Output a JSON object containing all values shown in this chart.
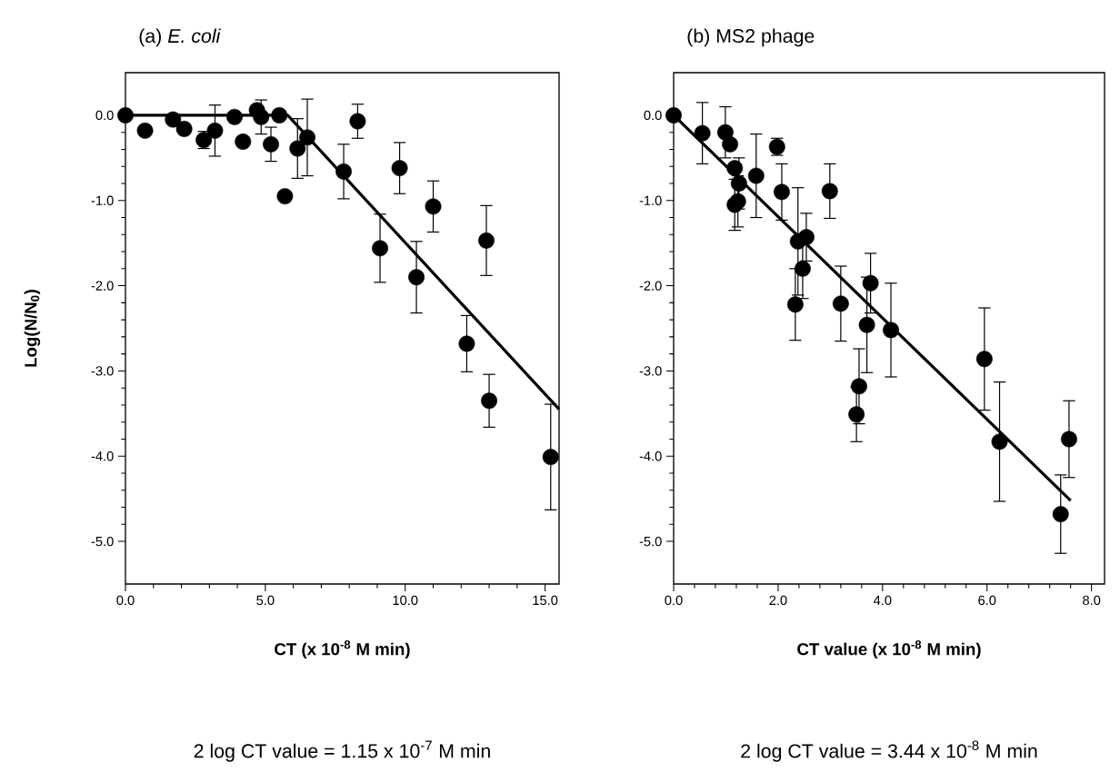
{
  "chart_data": [
    {
      "type": "scatter",
      "title": "(a) *E. coli*",
      "xlabel": "CT (x 10$^{-8}$ M min)",
      "ylabel": "Log(N/N$_{0}$)",
      "annotations": [
        "2 log CT value = 1.15 x 10$^{-7}$ M min"
      ],
      "xlim": [
        0,
        15.5
      ],
      "ylim": [
        -5.5,
        0.5
      ],
      "marker": "circle",
      "xticks": [
        {
          "value": 0,
          "label": "0.0"
        },
        {
          "value": 5,
          "label": "5.0"
        },
        {
          "value": 10,
          "label": "10.0"
        },
        {
          "value": 15,
          "label": "15.0"
        }
      ],
      "yticks": [
        {
          "value": 0,
          "label": "0.0"
        },
        {
          "value": -1,
          "label": "-1.0"
        },
        {
          "value": -2,
          "label": "-2.0"
        },
        {
          "value": -3,
          "label": "-3.0"
        },
        {
          "value": -4,
          "label": "-4.0"
        },
        {
          "value": -5,
          "label": "-5.0"
        }
      ],
      "series": [
        {
          "color": "#000000",
          "x": [
            0,
            0.7,
            1.7,
            2.1,
            2.8,
            3.2,
            3.9,
            4.2,
            4.7,
            4.85,
            5.2,
            5.5,
            5.7,
            6.15,
            6.5,
            7.8,
            8.3,
            9.1,
            9.8,
            10.4,
            11.0,
            12.2,
            12.9,
            13.0,
            15.2
          ],
          "values": [
            0,
            -0.18,
            -0.05,
            -0.16,
            -0.29,
            -0.18,
            -0.02,
            -0.31,
            0.06,
            -0.02,
            -0.34,
            0.0,
            -0.95,
            -0.39,
            -0.26,
            -0.66,
            -0.07,
            -1.56,
            -0.62,
            -1.9,
            -1.07,
            -2.68,
            -1.47,
            -3.35,
            -4.01
          ],
          "errors": [
            null,
            null,
            null,
            null,
            0.1,
            0.3,
            null,
            null,
            null,
            0.2,
            0.2,
            null,
            null,
            0.35,
            0.45,
            0.32,
            0.2,
            0.4,
            0.3,
            0.42,
            0.3,
            0.33,
            0.41,
            0.31,
            0.62
          ]
        },
        {
          "type": "line",
          "color": "#000000",
          "marker": "none",
          "x": [
            0,
            5.8,
            15.5
          ],
          "values": [
            0,
            0,
            -3.45
          ]
        }
      ]
    },
    {
      "type": "scatter",
      "title": "(b) MS2 phage",
      "xlabel": "CT value (x 10$^{-8}$ M min)",
      "annotations": [
        "2 log CT value = 3.44 x 10$^{-8}$ M min"
      ],
      "xlim": [
        0,
        8.25
      ],
      "ylim": [
        -5.5,
        0.5
      ],
      "marker": "circle",
      "xticks": [
        {
          "value": 0,
          "label": "0.0"
        },
        {
          "value": 2,
          "label": "2.0"
        },
        {
          "value": 4,
          "label": "4.0"
        },
        {
          "value": 6,
          "label": "6.0"
        },
        {
          "value": 8,
          "label": "8.0"
        }
      ],
      "yticks": [
        {
          "value": 0,
          "label": "0.0"
        },
        {
          "value": -1,
          "label": "-1.0"
        },
        {
          "value": -2,
          "label": "-2.0"
        },
        {
          "value": -3,
          "label": "-3.0"
        },
        {
          "value": -4,
          "label": "-4.0"
        },
        {
          "value": -5,
          "label": "-5.0"
        }
      ],
      "series": [
        {
          "color": "#000000",
          "x": [
            0,
            0.55,
            0.99,
            1.08,
            1.17,
            1.25,
            1.17,
            1.23,
            1.58,
            1.98,
            2.07,
            2.38,
            2.54,
            2.47,
            2.33,
            2.99,
            3.2,
            3.77,
            3.7,
            4.16,
            3.55,
            3.5,
            5.95,
            6.24,
            7.57,
            7.41
          ],
          "values": [
            0,
            -0.21,
            -0.2,
            -0.34,
            -0.62,
            -0.8,
            -1.05,
            -1.01,
            -0.71,
            -0.37,
            -0.9,
            -1.48,
            -1.43,
            -1.8,
            -2.22,
            -0.89,
            -2.21,
            -1.97,
            -2.46,
            -2.52,
            -3.18,
            -3.51,
            -2.86,
            -3.83,
            -3.8,
            -4.68
          ],
          "errors": [
            null,
            0.36,
            0.3,
            null,
            null,
            0.3,
            0.3,
            0.3,
            0.49,
            0.1,
            0.33,
            0.63,
            0.28,
            0.35,
            0.42,
            0.32,
            0.44,
            0.35,
            0.56,
            0.55,
            0.44,
            0.32,
            0.6,
            0.7,
            0.45,
            0.46
          ]
        },
        {
          "type": "line",
          "color": "#000000",
          "marker": "none",
          "x": [
            0,
            7.6
          ],
          "values": [
            0,
            -4.52
          ]
        }
      ]
    }
  ]
}
